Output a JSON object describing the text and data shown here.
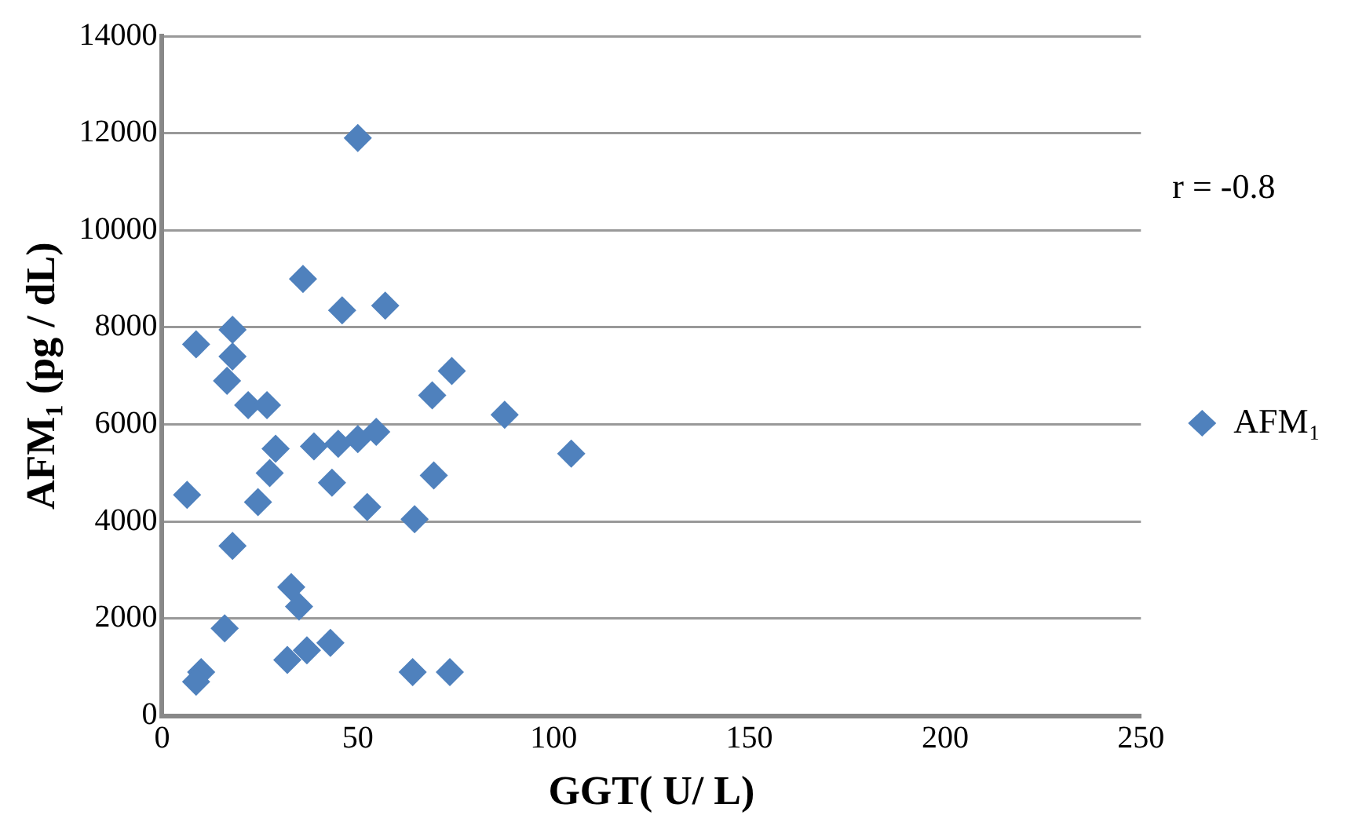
{
  "chart_data": {
    "type": "scatter",
    "xlabel": "GGT( U/ L)",
    "ylabel": "AFM₁ (pg / dL)",
    "annotations": [
      "r = -0.8"
    ],
    "xlim": [
      0,
      250
    ],
    "xticks": [
      0,
      50,
      100,
      150,
      200,
      250
    ],
    "ylim": [
      0,
      14000
    ],
    "yticks": [
      0,
      2000,
      4000,
      6000,
      8000,
      10000,
      12000,
      14000
    ],
    "grid": "y",
    "legend": "right",
    "marker": "diamond",
    "series": [
      {
        "name": "AFM₁",
        "color": "#4f81bd",
        "x": [
          50,
          36,
          46,
          57,
          18,
          8.7,
          18,
          16.6,
          22,
          26.8,
          29,
          27.5,
          6.4,
          24.5,
          18,
          38.8,
          45,
          50,
          54.7,
          43.4,
          52.4,
          64.5,
          69.4,
          69,
          74,
          87.5,
          104.5,
          33,
          35,
          16,
          32,
          37,
          43,
          10,
          8.7,
          64,
          73.5
        ],
        "values": [
          11900,
          9000,
          8350,
          8450,
          7950,
          7650,
          7400,
          6900,
          6400,
          6400,
          5500,
          5000,
          4550,
          4400,
          3500,
          5550,
          5600,
          5700,
          5850,
          4800,
          4300,
          4050,
          4950,
          6600,
          7100,
          6200,
          5400,
          2650,
          2250,
          1800,
          1150,
          1350,
          1500,
          900,
          700,
          900,
          900
        ]
      }
    ]
  }
}
